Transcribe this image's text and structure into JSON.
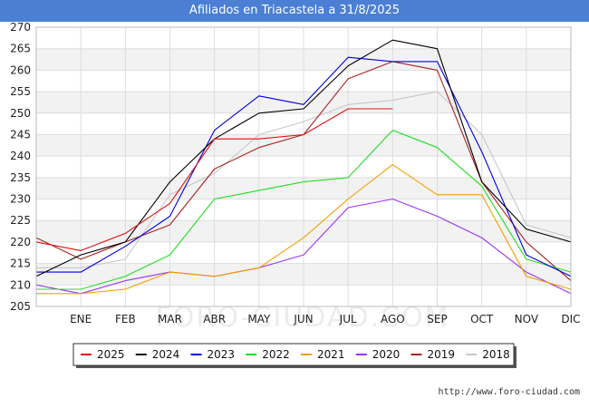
{
  "chart_data": {
    "type": "line",
    "title": "Afiliados en Triacastela a 31/8/2025",
    "xlabel": "",
    "ylabel": "",
    "categories": [
      "",
      "ENE",
      "FEB",
      "MAR",
      "ABR",
      "MAY",
      "JUN",
      "JUL",
      "AGO",
      "SEP",
      "OCT",
      "NOV",
      "DIC"
    ],
    "ylim": [
      205,
      270
    ],
    "yticks": [
      205,
      210,
      215,
      220,
      225,
      230,
      235,
      240,
      245,
      250,
      255,
      260,
      265,
      270
    ],
    "grid": true,
    "legend_position": "bottom",
    "series": [
      {
        "name": "2025",
        "color": "#dd1111",
        "values": [
          220,
          218,
          222,
          229,
          244,
          244,
          245,
          251,
          251,
          null,
          null,
          null,
          null
        ]
      },
      {
        "name": "2024",
        "color": "#000000",
        "values": [
          212,
          217,
          220,
          234,
          244,
          250,
          251,
          261,
          267,
          265,
          234,
          223,
          220
        ]
      },
      {
        "name": "2023",
        "color": "#0000dd",
        "values": [
          213,
          213,
          219,
          226,
          246,
          254,
          252,
          263,
          262,
          262,
          241,
          217,
          212
        ]
      },
      {
        "name": "2022",
        "color": "#22dd22",
        "values": [
          209,
          209,
          212,
          217,
          230,
          232,
          234,
          235,
          246,
          242,
          233,
          216,
          213
        ]
      },
      {
        "name": "2021",
        "color": "#f0a000",
        "values": [
          208,
          208,
          209,
          213,
          212,
          214,
          221,
          230,
          238,
          231,
          231,
          212,
          209
        ]
      },
      {
        "name": "2020",
        "color": "#9933ee",
        "values": [
          210,
          208,
          211,
          213,
          212,
          214,
          217,
          228,
          230,
          226,
          221,
          213,
          208
        ]
      },
      {
        "name": "2019",
        "color": "#aa2222",
        "values": [
          221,
          216,
          220,
          224,
          237,
          242,
          245,
          258,
          262,
          260,
          234,
          220,
          211
        ]
      },
      {
        "name": "2018",
        "color": "#c8c8c8",
        "values": [
          214,
          214,
          216,
          231,
          236,
          245,
          248,
          252,
          253,
          255,
          245,
          224,
          221
        ]
      }
    ]
  },
  "footer": {
    "url": "http://www.foro-ciudad.com"
  },
  "watermark": "FORO-CIUDAD.COM"
}
